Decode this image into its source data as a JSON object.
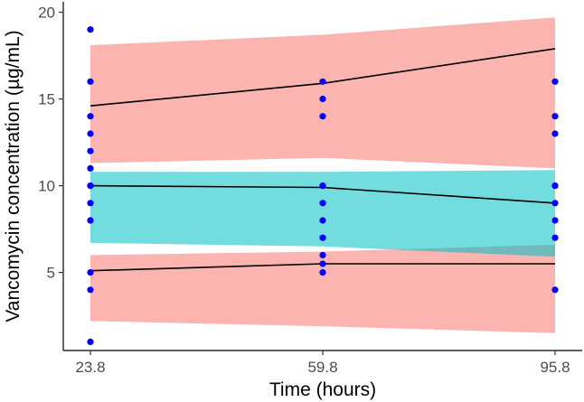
{
  "chart_data": {
    "type": "line",
    "title": "",
    "xlabel": "Time (hours)",
    "ylabel": "Vancomycin concentration (µg/mL)",
    "x_ticks": [
      23.8,
      59.8,
      95.8
    ],
    "x_tick_labels": [
      "23.8",
      "59.8",
      "95.8"
    ],
    "y_ticks": [
      5,
      10,
      15,
      20
    ],
    "y_tick_labels": [
      "5",
      "10",
      "15",
      "20"
    ],
    "xlim": [
      19.6,
      100
    ],
    "ylim": [
      0.5,
      20.6
    ],
    "grid": false,
    "legend": "none",
    "ribbons": [
      {
        "color": "#f8766d",
        "opacity": 0.55,
        "x": [
          23.8,
          59.8,
          95.8
        ],
        "lower": [
          11.3,
          11.6,
          11.0
        ],
        "upper": [
          18.1,
          18.7,
          19.7
        ]
      },
      {
        "color": "#f8766d",
        "opacity": 0.55,
        "x": [
          23.8,
          59.8,
          95.8
        ],
        "lower": [
          2.2,
          1.9,
          1.5
        ],
        "upper": [
          6.0,
          6.2,
          6.6
        ]
      },
      {
        "color": "#00bfc4",
        "opacity": 0.55,
        "x": [
          23.8,
          59.8,
          95.8
        ],
        "lower": [
          6.7,
          6.5,
          5.9
        ],
        "upper": [
          10.8,
          10.8,
          10.9
        ]
      }
    ],
    "series": [
      {
        "color": "#000000",
        "x": [
          23.8,
          59.8,
          95.8
        ],
        "values": [
          14.6,
          15.9,
          17.9
        ]
      },
      {
        "color": "#000000",
        "x": [
          23.8,
          59.8,
          95.8
        ],
        "values": [
          10.0,
          9.9,
          9.0
        ]
      },
      {
        "color": "#000000",
        "x": [
          23.8,
          59.8,
          95.8
        ],
        "values": [
          5.1,
          5.5,
          5.5
        ]
      }
    ],
    "points": {
      "color": "#0000ff",
      "x": [
        23.8,
        23.8,
        23.8,
        23.8,
        23.8,
        23.8,
        23.8,
        23.8,
        23.8,
        23.8,
        23.8,
        23.8,
        23.8,
        23.8,
        59.8,
        59.8,
        59.8,
        59.8,
        59.8,
        59.8,
        59.8,
        59.8,
        59.8,
        59.8,
        59.8,
        95.8,
        95.8,
        95.8,
        95.8,
        95.8,
        95.8,
        95.8,
        95.8,
        95.8
      ],
      "y": [
        19,
        16,
        14,
        13,
        12,
        11,
        10,
        10,
        9,
        8,
        8,
        5,
        4,
        1,
        16,
        15,
        14,
        10,
        9,
        8,
        7,
        6,
        5.5,
        5,
        10,
        16,
        14,
        13,
        10,
        9,
        8,
        7,
        4,
        10
      ]
    }
  }
}
